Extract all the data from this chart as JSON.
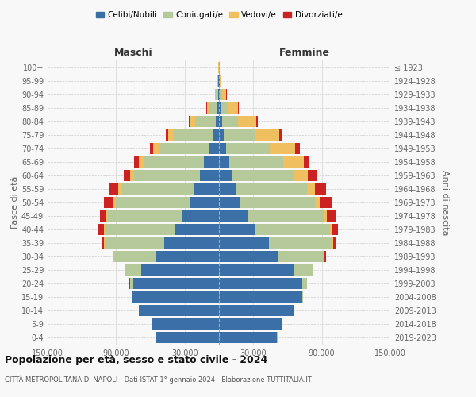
{
  "age_groups": [
    "0-4",
    "5-9",
    "10-14",
    "15-19",
    "20-24",
    "25-29",
    "30-34",
    "35-39",
    "40-44",
    "45-49",
    "50-54",
    "55-59",
    "60-64",
    "65-69",
    "70-74",
    "75-79",
    "80-84",
    "85-89",
    "90-94",
    "95-99",
    "100+"
  ],
  "birth_years": [
    "2019-2023",
    "2014-2018",
    "2009-2013",
    "2004-2008",
    "1999-2003",
    "1994-1998",
    "1989-1993",
    "1984-1988",
    "1979-1983",
    "1974-1978",
    "1969-1973",
    "1964-1968",
    "1959-1963",
    "1954-1958",
    "1949-1953",
    "1944-1948",
    "1939-1943",
    "1934-1938",
    "1929-1933",
    "1924-1928",
    "≤ 1923"
  ],
  "maschi": {
    "celibi": [
      55000,
      58000,
      70000,
      76000,
      75000,
      68000,
      55000,
      48000,
      38000,
      32000,
      26000,
      22000,
      17000,
      13000,
      9000,
      5500,
      3000,
      1500,
      800,
      400,
      200
    ],
    "coniugati": [
      50,
      100,
      200,
      500,
      3000,
      14000,
      37000,
      52000,
      62000,
      65000,
      65000,
      63000,
      57000,
      52000,
      43000,
      34000,
      18000,
      7000,
      2000,
      600,
      100
    ],
    "vedovi": [
      10,
      10,
      10,
      30,
      50,
      100,
      200,
      500,
      1000,
      1500,
      2000,
      3000,
      4000,
      5000,
      5500,
      5000,
      4000,
      2000,
      600,
      200,
      50
    ],
    "divorziati": [
      10,
      10,
      20,
      50,
      100,
      400,
      1200,
      2500,
      4500,
      6000,
      8000,
      7500,
      5500,
      4000,
      3000,
      2000,
      1200,
      600,
      300,
      100,
      20
    ]
  },
  "femmine": {
    "nubili": [
      51000,
      55000,
      66000,
      73000,
      73000,
      65000,
      52000,
      44000,
      32000,
      25000,
      19000,
      15000,
      11000,
      9000,
      6500,
      4000,
      2500,
      1500,
      900,
      400,
      200
    ],
    "coniugate": [
      50,
      100,
      200,
      600,
      4000,
      17000,
      40000,
      55000,
      65000,
      67000,
      65000,
      62000,
      55000,
      47000,
      38000,
      28000,
      14000,
      6000,
      1800,
      500,
      100
    ],
    "vedove": [
      10,
      10,
      10,
      20,
      50,
      100,
      300,
      700,
      1500,
      2500,
      4000,
      7000,
      12000,
      18000,
      22000,
      21000,
      16000,
      9000,
      3500,
      900,
      200
    ],
    "divorziate": [
      10,
      10,
      20,
      50,
      150,
      500,
      1500,
      3000,
      5500,
      8000,
      10500,
      10000,
      8000,
      5500,
      4000,
      2500,
      1500,
      800,
      400,
      150,
      20
    ]
  },
  "colors": {
    "celibi": "#3a6fa8",
    "coniugati": "#b5c99a",
    "vedovi": "#f0c060",
    "divorziati": "#cc2222"
  },
  "xlim": 150000,
  "title": "Popolazione per età, sesso e stato civile - 2024",
  "subtitle": "CITTÀ METROPOLITANA DI NAPOLI - Dati ISTAT 1° gennaio 2024 - Elaborazione TUTTITALIA.IT",
  "ylabel": "Fasce di età",
  "ylabel_right": "Anni di nascita",
  "xlabel_left": "Maschi",
  "xlabel_right": "Femmine",
  "legend_labels": [
    "Celibi/Nubili",
    "Coniugati/e",
    "Vedovi/e",
    "Divorziati/e"
  ],
  "xticks": [
    -150000,
    -90000,
    -30000,
    30000,
    90000,
    150000
  ],
  "xtick_labels": [
    "150.000",
    "90.000",
    "30.000",
    "30.000",
    "90.000",
    "150.000"
  ],
  "background_color": "#f8f8f8"
}
